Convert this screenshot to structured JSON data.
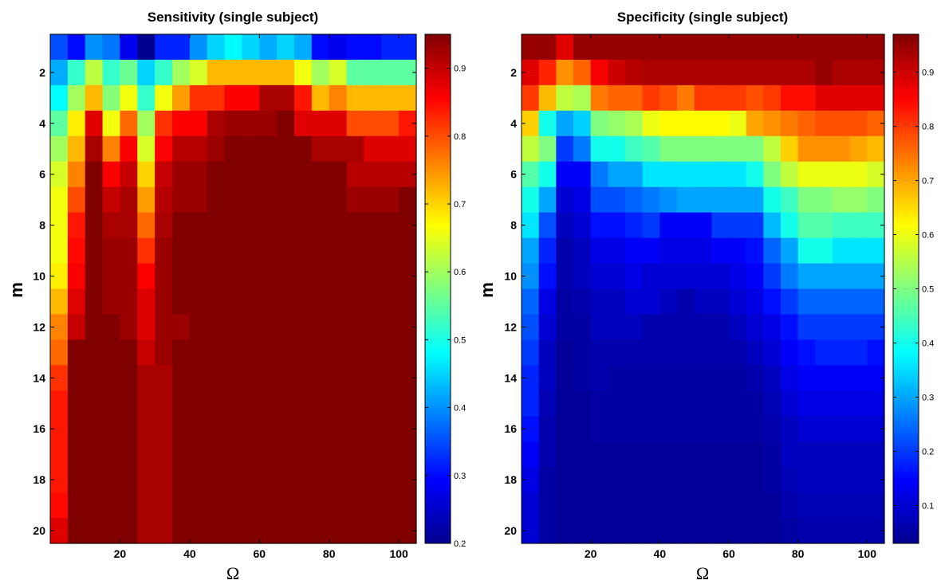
{
  "chart_data": [
    {
      "type": "heatmap",
      "title": "Sensitivity (single subject)",
      "xlabel": "Ω",
      "ylabel": "m",
      "x": [
        2.5,
        7.5,
        12.5,
        17.5,
        22.5,
        27.5,
        32.5,
        37.5,
        42.5,
        47.5,
        52.5,
        57.5,
        62.5,
        67.5,
        72.5,
        77.5,
        82.5,
        87.5,
        92.5,
        97.5,
        102.5
      ],
      "y": [
        1,
        2,
        3,
        4,
        5,
        6,
        7,
        8,
        9,
        10,
        11,
        12,
        13,
        14,
        15,
        16,
        17,
        18,
        19,
        20
      ],
      "xlim": [
        0,
        105
      ],
      "ylim": [
        0.5,
        20.5
      ],
      "xticks": [
        "20",
        "40",
        "60",
        "80",
        "100"
      ],
      "yticks": [
        "2",
        "4",
        "6",
        "8",
        "10",
        "12",
        "14",
        "16",
        "18",
        "20"
      ],
      "colorbar": {
        "range": [
          0.2,
          0.95
        ],
        "ticks": [
          "0.2",
          "0.3",
          "0.4",
          "0.5",
          "0.6",
          "0.7",
          "0.8",
          "0.9"
        ]
      },
      "values": [
        [
          0.35,
          0.3,
          0.4,
          0.38,
          0.28,
          0.2,
          0.32,
          0.32,
          0.4,
          0.45,
          0.48,
          0.45,
          0.42,
          0.45,
          0.42,
          0.3,
          0.28,
          0.3,
          0.3,
          0.32,
          0.32
        ],
        [
          0.42,
          0.52,
          0.62,
          0.52,
          0.56,
          0.45,
          0.52,
          0.6,
          0.64,
          0.72,
          0.72,
          0.72,
          0.72,
          0.72,
          0.66,
          0.6,
          0.64,
          0.55,
          0.55,
          0.55,
          0.55
        ],
        [
          0.48,
          0.6,
          0.72,
          0.58,
          0.66,
          0.52,
          0.66,
          0.74,
          0.82,
          0.82,
          0.86,
          0.86,
          0.92,
          0.92,
          0.84,
          0.72,
          0.76,
          0.72,
          0.72,
          0.72,
          0.72
        ],
        [
          0.55,
          0.68,
          0.88,
          0.66,
          0.78,
          0.6,
          0.82,
          0.86,
          0.86,
          0.92,
          0.93,
          0.93,
          0.93,
          0.95,
          0.88,
          0.88,
          0.88,
          0.8,
          0.8,
          0.8,
          0.84
        ],
        [
          0.6,
          0.72,
          0.92,
          0.76,
          0.86,
          0.64,
          0.86,
          0.91,
          0.91,
          0.93,
          0.95,
          0.95,
          0.95,
          0.95,
          0.95,
          0.92,
          0.92,
          0.92,
          0.88,
          0.88,
          0.88
        ],
        [
          0.64,
          0.76,
          0.95,
          0.86,
          0.9,
          0.7,
          0.9,
          0.93,
          0.93,
          0.95,
          0.95,
          0.95,
          0.95,
          0.95,
          0.95,
          0.95,
          0.95,
          0.91,
          0.91,
          0.91,
          0.91
        ],
        [
          0.66,
          0.8,
          0.95,
          0.9,
          0.92,
          0.74,
          0.91,
          0.93,
          0.93,
          0.95,
          0.95,
          0.95,
          0.95,
          0.95,
          0.95,
          0.95,
          0.95,
          0.93,
          0.93,
          0.93,
          0.95
        ],
        [
          0.66,
          0.84,
          0.95,
          0.92,
          0.92,
          0.78,
          0.92,
          0.95,
          0.95,
          0.95,
          0.95,
          0.95,
          0.95,
          0.95,
          0.95,
          0.95,
          0.95,
          0.95,
          0.95,
          0.95,
          0.95
        ],
        [
          0.66,
          0.85,
          0.95,
          0.93,
          0.93,
          0.82,
          0.93,
          0.95,
          0.95,
          0.95,
          0.95,
          0.95,
          0.95,
          0.95,
          0.95,
          0.95,
          0.95,
          0.95,
          0.95,
          0.95,
          0.95
        ],
        [
          0.68,
          0.86,
          0.95,
          0.93,
          0.93,
          0.86,
          0.93,
          0.95,
          0.95,
          0.95,
          0.95,
          0.95,
          0.95,
          0.95,
          0.95,
          0.95,
          0.95,
          0.95,
          0.95,
          0.95,
          0.95
        ],
        [
          0.72,
          0.88,
          0.95,
          0.93,
          0.93,
          0.88,
          0.93,
          0.95,
          0.95,
          0.95,
          0.95,
          0.95,
          0.95,
          0.95,
          0.95,
          0.95,
          0.95,
          0.95,
          0.95,
          0.95,
          0.95
        ],
        [
          0.76,
          0.9,
          0.95,
          0.95,
          0.93,
          0.88,
          0.93,
          0.93,
          0.95,
          0.95,
          0.95,
          0.95,
          0.95,
          0.95,
          0.95,
          0.95,
          0.95,
          0.95,
          0.95,
          0.95,
          0.95
        ],
        [
          0.78,
          0.95,
          0.95,
          0.95,
          0.95,
          0.9,
          0.93,
          0.95,
          0.95,
          0.95,
          0.95,
          0.95,
          0.95,
          0.95,
          0.95,
          0.95,
          0.95,
          0.95,
          0.95,
          0.95,
          0.95
        ],
        [
          0.82,
          0.95,
          0.95,
          0.95,
          0.95,
          0.92,
          0.92,
          0.95,
          0.95,
          0.95,
          0.95,
          0.95,
          0.95,
          0.95,
          0.95,
          0.95,
          0.95,
          0.95,
          0.95,
          0.95,
          0.95
        ],
        [
          0.84,
          0.95,
          0.95,
          0.95,
          0.95,
          0.92,
          0.92,
          0.95,
          0.95,
          0.95,
          0.95,
          0.95,
          0.95,
          0.95,
          0.95,
          0.95,
          0.95,
          0.95,
          0.95,
          0.95,
          0.95
        ],
        [
          0.84,
          0.95,
          0.95,
          0.95,
          0.95,
          0.92,
          0.92,
          0.95,
          0.95,
          0.95,
          0.95,
          0.95,
          0.95,
          0.95,
          0.95,
          0.95,
          0.95,
          0.95,
          0.95,
          0.95,
          0.95
        ],
        [
          0.84,
          0.95,
          0.95,
          0.95,
          0.95,
          0.92,
          0.92,
          0.95,
          0.95,
          0.95,
          0.95,
          0.95,
          0.95,
          0.95,
          0.95,
          0.95,
          0.95,
          0.95,
          0.95,
          0.95,
          0.95
        ],
        [
          0.84,
          0.95,
          0.95,
          0.95,
          0.95,
          0.92,
          0.92,
          0.95,
          0.95,
          0.95,
          0.95,
          0.95,
          0.95,
          0.95,
          0.95,
          0.95,
          0.95,
          0.95,
          0.95,
          0.95,
          0.95
        ],
        [
          0.85,
          0.95,
          0.95,
          0.95,
          0.95,
          0.92,
          0.92,
          0.95,
          0.95,
          0.95,
          0.95,
          0.95,
          0.95,
          0.95,
          0.95,
          0.95,
          0.95,
          0.95,
          0.95,
          0.95,
          0.95
        ],
        [
          0.88,
          0.95,
          0.95,
          0.95,
          0.95,
          0.92,
          0.92,
          0.95,
          0.95,
          0.95,
          0.95,
          0.95,
          0.95,
          0.95,
          0.95,
          0.95,
          0.95,
          0.95,
          0.95,
          0.95,
          0.95
        ]
      ]
    },
    {
      "type": "heatmap",
      "title": "Specificity (single subject)",
      "xlabel": "Ω",
      "ylabel": "m",
      "x": [
        2.5,
        7.5,
        12.5,
        17.5,
        22.5,
        27.5,
        32.5,
        37.5,
        42.5,
        47.5,
        52.5,
        57.5,
        62.5,
        67.5,
        72.5,
        77.5,
        82.5,
        87.5,
        92.5,
        97.5,
        102.5
      ],
      "y": [
        1,
        2,
        3,
        4,
        5,
        6,
        7,
        8,
        9,
        10,
        11,
        12,
        13,
        14,
        15,
        16,
        17,
        18,
        19,
        20
      ],
      "xlim": [
        0,
        105
      ],
      "ylim": [
        0.5,
        20.5
      ],
      "xticks": [
        "20",
        "40",
        "60",
        "80",
        "100"
      ],
      "yticks": [
        "2",
        "4",
        "6",
        "8",
        "10",
        "12",
        "14",
        "16",
        "18",
        "20"
      ],
      "colorbar": {
        "range": [
          0.03,
          0.97
        ],
        "ticks": [
          "0.1",
          "0.2",
          "0.3",
          "0.4",
          "0.5",
          "0.6",
          "0.7",
          "0.8",
          "0.9"
        ]
      },
      "values": [
        [
          0.95,
          0.95,
          0.88,
          0.95,
          0.95,
          0.95,
          0.95,
          0.95,
          0.95,
          0.95,
          0.95,
          0.95,
          0.95,
          0.95,
          0.95,
          0.95,
          0.95,
          0.95,
          0.95,
          0.95,
          0.95
        ],
        [
          0.88,
          0.82,
          0.72,
          0.76,
          0.86,
          0.9,
          0.92,
          0.93,
          0.93,
          0.93,
          0.93,
          0.93,
          0.93,
          0.93,
          0.93,
          0.93,
          0.93,
          0.95,
          0.93,
          0.93,
          0.93
        ],
        [
          0.8,
          0.68,
          0.56,
          0.54,
          0.74,
          0.76,
          0.76,
          0.8,
          0.78,
          0.74,
          0.8,
          0.8,
          0.8,
          0.78,
          0.8,
          0.84,
          0.84,
          0.88,
          0.88,
          0.88,
          0.88
        ],
        [
          0.66,
          0.4,
          0.3,
          0.34,
          0.5,
          0.52,
          0.54,
          0.6,
          0.62,
          0.62,
          0.62,
          0.62,
          0.6,
          0.7,
          0.72,
          0.74,
          0.76,
          0.78,
          0.78,
          0.78,
          0.76
        ],
        [
          0.56,
          0.5,
          0.2,
          0.26,
          0.4,
          0.4,
          0.44,
          0.46,
          0.5,
          0.5,
          0.5,
          0.5,
          0.5,
          0.5,
          0.56,
          0.66,
          0.72,
          0.72,
          0.72,
          0.7,
          0.68
        ],
        [
          0.46,
          0.4,
          0.14,
          0.14,
          0.26,
          0.3,
          0.3,
          0.36,
          0.36,
          0.36,
          0.36,
          0.36,
          0.36,
          0.4,
          0.5,
          0.56,
          0.6,
          0.6,
          0.6,
          0.6,
          0.58
        ],
        [
          0.4,
          0.3,
          0.1,
          0.12,
          0.22,
          0.22,
          0.24,
          0.26,
          0.28,
          0.3,
          0.3,
          0.3,
          0.3,
          0.3,
          0.4,
          0.44,
          0.5,
          0.5,
          0.52,
          0.52,
          0.5
        ],
        [
          0.36,
          0.22,
          0.08,
          0.1,
          0.16,
          0.16,
          0.18,
          0.2,
          0.14,
          0.14,
          0.14,
          0.2,
          0.2,
          0.2,
          0.32,
          0.4,
          0.46,
          0.46,
          0.44,
          0.44,
          0.44
        ],
        [
          0.3,
          0.18,
          0.06,
          0.08,
          0.12,
          0.12,
          0.14,
          0.14,
          0.12,
          0.12,
          0.12,
          0.14,
          0.14,
          0.16,
          0.24,
          0.3,
          0.4,
          0.4,
          0.36,
          0.36,
          0.36
        ],
        [
          0.28,
          0.16,
          0.06,
          0.08,
          0.1,
          0.1,
          0.12,
          0.1,
          0.1,
          0.1,
          0.1,
          0.1,
          0.12,
          0.14,
          0.2,
          0.26,
          0.3,
          0.3,
          0.3,
          0.3,
          0.3
        ],
        [
          0.24,
          0.12,
          0.05,
          0.06,
          0.08,
          0.08,
          0.1,
          0.1,
          0.08,
          0.06,
          0.08,
          0.08,
          0.1,
          0.12,
          0.16,
          0.2,
          0.24,
          0.24,
          0.24,
          0.24,
          0.24
        ],
        [
          0.22,
          0.1,
          0.05,
          0.05,
          0.08,
          0.08,
          0.08,
          0.06,
          0.06,
          0.06,
          0.06,
          0.06,
          0.08,
          0.1,
          0.12,
          0.16,
          0.2,
          0.2,
          0.2,
          0.2,
          0.2
        ],
        [
          0.2,
          0.08,
          0.04,
          0.05,
          0.06,
          0.06,
          0.06,
          0.06,
          0.06,
          0.06,
          0.06,
          0.06,
          0.06,
          0.08,
          0.1,
          0.14,
          0.16,
          0.18,
          0.18,
          0.18,
          0.16
        ],
        [
          0.18,
          0.08,
          0.04,
          0.05,
          0.06,
          0.05,
          0.05,
          0.05,
          0.05,
          0.05,
          0.05,
          0.05,
          0.05,
          0.06,
          0.08,
          0.12,
          0.14,
          0.14,
          0.14,
          0.14,
          0.14
        ],
        [
          0.18,
          0.07,
          0.04,
          0.04,
          0.05,
          0.05,
          0.05,
          0.05,
          0.05,
          0.05,
          0.05,
          0.05,
          0.05,
          0.05,
          0.07,
          0.1,
          0.12,
          0.12,
          0.12,
          0.12,
          0.12
        ],
        [
          0.16,
          0.06,
          0.04,
          0.04,
          0.05,
          0.05,
          0.05,
          0.05,
          0.05,
          0.05,
          0.05,
          0.05,
          0.05,
          0.05,
          0.06,
          0.08,
          0.1,
          0.1,
          0.1,
          0.1,
          0.1
        ],
        [
          0.14,
          0.06,
          0.04,
          0.04,
          0.04,
          0.04,
          0.04,
          0.04,
          0.04,
          0.04,
          0.04,
          0.04,
          0.04,
          0.04,
          0.05,
          0.08,
          0.08,
          0.08,
          0.08,
          0.08,
          0.08
        ],
        [
          0.12,
          0.05,
          0.04,
          0.04,
          0.04,
          0.04,
          0.04,
          0.04,
          0.04,
          0.04,
          0.04,
          0.04,
          0.04,
          0.04,
          0.05,
          0.07,
          0.08,
          0.08,
          0.08,
          0.08,
          0.08
        ],
        [
          0.1,
          0.05,
          0.04,
          0.04,
          0.04,
          0.04,
          0.04,
          0.04,
          0.04,
          0.04,
          0.04,
          0.04,
          0.04,
          0.04,
          0.04,
          0.06,
          0.07,
          0.07,
          0.07,
          0.07,
          0.07
        ],
        [
          0.1,
          0.05,
          0.04,
          0.04,
          0.04,
          0.04,
          0.04,
          0.04,
          0.04,
          0.04,
          0.04,
          0.04,
          0.04,
          0.04,
          0.04,
          0.05,
          0.06,
          0.06,
          0.06,
          0.06,
          0.06
        ]
      ]
    }
  ]
}
